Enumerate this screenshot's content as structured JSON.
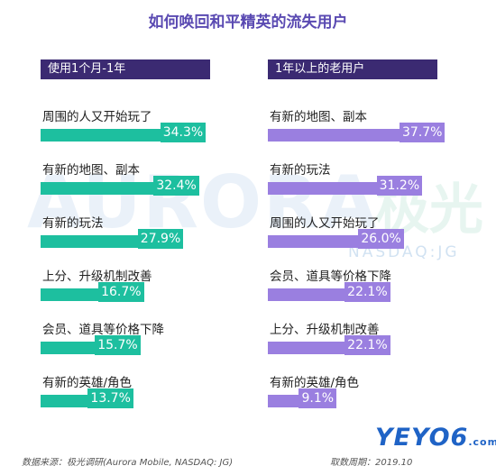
{
  "title": "如何唤回和平精英的流失用户",
  "watermark": {
    "word": "AURORA",
    "cn": "极光",
    "sub": "NASDAQ:JG"
  },
  "chart_data": [
    {
      "type": "bar",
      "orientation": "horizontal",
      "header": "使用1个月-1年",
      "color": "#1dbf9f",
      "max_value": 37.7,
      "categories": [
        "周围的人又开始玩了",
        "有新的地图、副本",
        "有新的玩法",
        "上分、升级机制改善",
        "会员、道具等价格下降",
        "有新的英雄/角色"
      ],
      "values": [
        34.3,
        32.4,
        27.9,
        16.7,
        15.7,
        13.7
      ],
      "labels": [
        "34.3%",
        "32.4%",
        "27.9%",
        "16.7%",
        "15.7%",
        "13.7%"
      ]
    },
    {
      "type": "bar",
      "orientation": "horizontal",
      "header": "1年以上的老用户",
      "color": "#9a7fe0",
      "max_value": 37.7,
      "categories": [
        "有新的地图、副本",
        "有新的玩法",
        "周围的人又开始玩了",
        "会员、道具等价格下降",
        "上分、升级机制改善",
        "有新的英雄/角色"
      ],
      "values": [
        37.7,
        31.2,
        26.0,
        22.1,
        22.1,
        9.1
      ],
      "labels": [
        "37.7%",
        "31.2%",
        "26.0%",
        "22.1%",
        "22.1%",
        "9.1%"
      ]
    }
  ],
  "footer": {
    "source": "数据来源：极光调研(Aurora Mobile, NASDAQ: JG)",
    "period": "取数周期：2019.10"
  },
  "site_logo": {
    "text": "YEYO6",
    "sub": ".com"
  }
}
